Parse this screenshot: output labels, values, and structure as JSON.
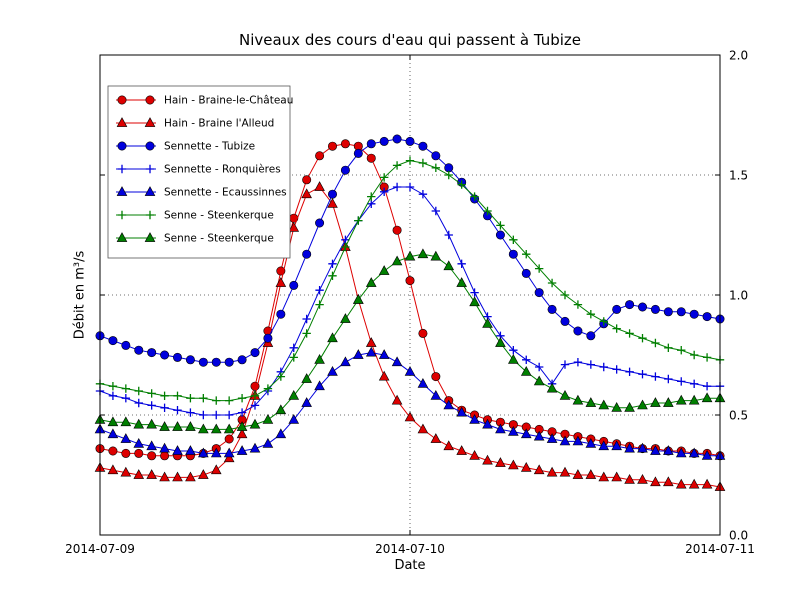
{
  "chart_data": {
    "type": "line",
    "title": "Niveaux des cours d'eau qui passent à Tubize",
    "xlabel": "Date",
    "ylabel": "Débit en m³/s",
    "x_unit": "hours since 2014-07-09 00:00",
    "xlim": [
      0,
      48
    ],
    "ylim": [
      0.0,
      2.0
    ],
    "grid": true,
    "legend_position": "upper left",
    "x_ticks": [
      {
        "value": 0,
        "label": "2014-07-09"
      },
      {
        "value": 24,
        "label": "2014-07-10"
      },
      {
        "value": 48,
        "label": "2014-07-11"
      }
    ],
    "y_ticks": [
      {
        "value": 0.0,
        "label": "0.0"
      },
      {
        "value": 0.5,
        "label": "0.5"
      },
      {
        "value": 1.0,
        "label": "1.0"
      },
      {
        "value": 1.5,
        "label": "1.5"
      },
      {
        "value": 2.0,
        "label": "2.0"
      }
    ],
    "x": [
      0,
      1,
      2,
      3,
      4,
      5,
      6,
      7,
      8,
      9,
      10,
      11,
      12,
      13,
      14,
      15,
      16,
      17,
      18,
      19,
      20,
      21,
      22,
      23,
      24,
      25,
      26,
      27,
      28,
      29,
      30,
      31,
      32,
      33,
      34,
      35,
      36,
      37,
      38,
      39,
      40,
      41,
      42,
      43,
      44,
      45,
      46,
      47,
      48
    ],
    "series": [
      {
        "name": "Hain - Braine-le-Château",
        "color": "#dd0000",
        "marker": "circle",
        "values": [
          0.36,
          0.35,
          0.34,
          0.34,
          0.33,
          0.33,
          0.33,
          0.33,
          0.34,
          0.36,
          0.4,
          0.48,
          0.62,
          0.85,
          1.1,
          1.32,
          1.48,
          1.58,
          1.62,
          1.63,
          1.62,
          1.57,
          1.45,
          1.27,
          1.06,
          0.84,
          0.66,
          0.56,
          0.52,
          0.5,
          0.48,
          0.47,
          0.46,
          0.45,
          0.44,
          0.43,
          0.42,
          0.41,
          0.4,
          0.39,
          0.38,
          0.37,
          0.36,
          0.36,
          0.35,
          0.35,
          0.34,
          0.34,
          0.33
        ]
      },
      {
        "name": "Hain - Braine l'Alleud",
        "color": "#dd0000",
        "marker": "triangle_up",
        "values": [
          0.28,
          0.27,
          0.26,
          0.25,
          0.25,
          0.24,
          0.24,
          0.24,
          0.25,
          0.27,
          0.32,
          0.42,
          0.58,
          0.8,
          1.05,
          1.28,
          1.42,
          1.45,
          1.38,
          1.2,
          0.98,
          0.8,
          0.66,
          0.56,
          0.49,
          0.44,
          0.4,
          0.37,
          0.35,
          0.33,
          0.31,
          0.3,
          0.29,
          0.28,
          0.27,
          0.26,
          0.26,
          0.25,
          0.25,
          0.24,
          0.24,
          0.23,
          0.23,
          0.22,
          0.22,
          0.21,
          0.21,
          0.21,
          0.2
        ]
      },
      {
        "name": "Sennette - Tubize",
        "color": "#0000dd",
        "marker": "circle",
        "values": [
          0.83,
          0.81,
          0.79,
          0.77,
          0.76,
          0.75,
          0.74,
          0.73,
          0.72,
          0.72,
          0.72,
          0.73,
          0.76,
          0.82,
          0.92,
          1.04,
          1.17,
          1.3,
          1.42,
          1.52,
          1.59,
          1.63,
          1.64,
          1.65,
          1.64,
          1.62,
          1.58,
          1.53,
          1.47,
          1.4,
          1.33,
          1.25,
          1.17,
          1.09,
          1.01,
          0.94,
          0.89,
          0.85,
          0.83,
          0.88,
          0.94,
          0.96,
          0.95,
          0.94,
          0.93,
          0.93,
          0.92,
          0.91,
          0.9
        ]
      },
      {
        "name": "Sennette - Ronquières",
        "color": "#0000dd",
        "marker": "plus",
        "values": [
          0.6,
          0.58,
          0.57,
          0.55,
          0.54,
          0.53,
          0.52,
          0.51,
          0.5,
          0.5,
          0.5,
          0.51,
          0.54,
          0.6,
          0.68,
          0.78,
          0.9,
          1.02,
          1.13,
          1.23,
          1.31,
          1.38,
          1.43,
          1.45,
          1.45,
          1.42,
          1.35,
          1.25,
          1.13,
          1.01,
          0.91,
          0.83,
          0.77,
          0.73,
          0.7,
          0.63,
          0.71,
          0.72,
          0.71,
          0.7,
          0.69,
          0.68,
          0.67,
          0.66,
          0.65,
          0.64,
          0.63,
          0.62,
          0.62
        ]
      },
      {
        "name": "Sennette - Ecaussinnes",
        "color": "#0000dd",
        "marker": "triangle_up",
        "values": [
          0.44,
          0.42,
          0.4,
          0.38,
          0.37,
          0.36,
          0.35,
          0.35,
          0.34,
          0.34,
          0.34,
          0.35,
          0.36,
          0.38,
          0.42,
          0.48,
          0.55,
          0.62,
          0.68,
          0.72,
          0.75,
          0.76,
          0.75,
          0.72,
          0.68,
          0.63,
          0.58,
          0.54,
          0.51,
          0.48,
          0.46,
          0.44,
          0.43,
          0.42,
          0.41,
          0.4,
          0.39,
          0.39,
          0.38,
          0.37,
          0.37,
          0.36,
          0.36,
          0.35,
          0.35,
          0.34,
          0.34,
          0.33,
          0.33
        ]
      },
      {
        "name": "Senne - Steenkerque",
        "color": "#007f00",
        "marker": "plus",
        "values": [
          0.63,
          0.62,
          0.61,
          0.6,
          0.59,
          0.58,
          0.58,
          0.57,
          0.57,
          0.56,
          0.56,
          0.57,
          0.58,
          0.61,
          0.66,
          0.74,
          0.84,
          0.96,
          1.08,
          1.2,
          1.31,
          1.41,
          1.49,
          1.54,
          1.56,
          1.55,
          1.53,
          1.5,
          1.46,
          1.41,
          1.35,
          1.29,
          1.23,
          1.17,
          1.11,
          1.05,
          1.0,
          0.96,
          0.92,
          0.89,
          0.86,
          0.84,
          0.82,
          0.8,
          0.78,
          0.77,
          0.75,
          0.74,
          0.73
        ]
      },
      {
        "name": "Senne - Steenkerque",
        "color": "#007f00",
        "marker": "triangle_up",
        "values": [
          0.48,
          0.47,
          0.47,
          0.46,
          0.46,
          0.45,
          0.45,
          0.45,
          0.44,
          0.44,
          0.44,
          0.45,
          0.46,
          0.48,
          0.52,
          0.58,
          0.65,
          0.73,
          0.82,
          0.9,
          0.98,
          1.05,
          1.1,
          1.14,
          1.16,
          1.17,
          1.16,
          1.12,
          1.05,
          0.97,
          0.88,
          0.8,
          0.73,
          0.68,
          0.64,
          0.61,
          0.58,
          0.56,
          0.55,
          0.54,
          0.53,
          0.53,
          0.54,
          0.55,
          0.55,
          0.56,
          0.56,
          0.57,
          0.57
        ]
      }
    ]
  }
}
